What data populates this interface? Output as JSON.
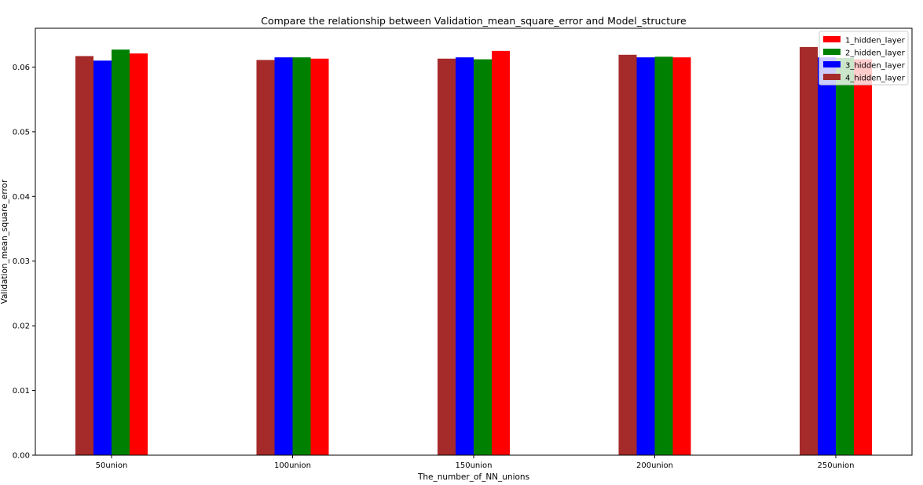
{
  "chart_data": {
    "type": "bar",
    "title": "Compare the relationship between Validation_mean_square_error and Model_structure",
    "xlabel": "The_number_of_NN_unions",
    "ylabel": "Validation_mean_square_error",
    "categories": [
      "50union",
      "100union",
      "150union",
      "200union",
      "250union"
    ],
    "ylim": [
      0,
      0.066
    ],
    "yticks": [
      0.0,
      0.01,
      0.02,
      0.03,
      0.04,
      0.05,
      0.06
    ],
    "ytick_labels": [
      "0.00",
      "0.01",
      "0.02",
      "0.03",
      "0.04",
      "0.05",
      "0.06"
    ],
    "grid": false,
    "legend_position": "top-right",
    "series": [
      {
        "name": "1_hidden_layer",
        "color": "#ff0000",
        "values": [
          0.0621,
          0.0613,
          0.0625,
          0.0615,
          0.0612
        ]
      },
      {
        "name": "2_hidden_layer",
        "color": "#008000",
        "values": [
          0.0627,
          0.0615,
          0.0612,
          0.0616,
          0.0614
        ]
      },
      {
        "name": "3_hidden_layer",
        "color": "#0000ff",
        "values": [
          0.061,
          0.0615,
          0.0615,
          0.0615,
          0.0615
        ]
      },
      {
        "name": "4_hidden_layer",
        "color": "#a52a2a",
        "values": [
          0.0617,
          0.0611,
          0.0613,
          0.0619,
          0.0631
        ]
      }
    ],
    "draw_order": [
      "4_hidden_layer",
      "3_hidden_layer",
      "2_hidden_layer",
      "1_hidden_layer"
    ]
  }
}
